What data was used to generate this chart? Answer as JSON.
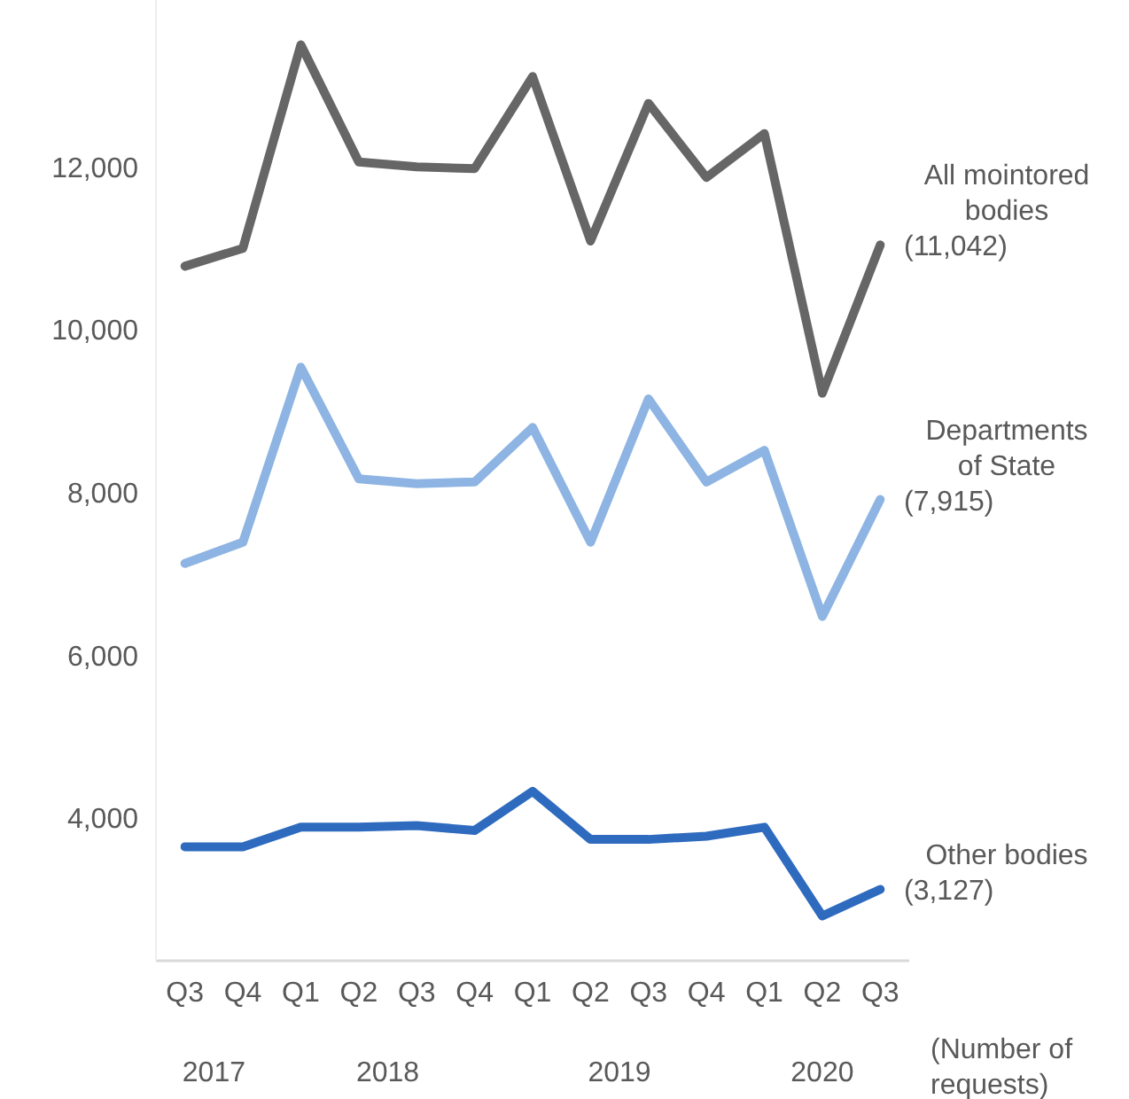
{
  "chart_data": {
    "type": "line",
    "categories": [
      "Q3",
      "Q4",
      "Q1",
      "Q2",
      "Q3",
      "Q4",
      "Q1",
      "Q2",
      "Q3",
      "Q4",
      "Q1",
      "Q2",
      "Q3"
    ],
    "series": [
      {
        "name": "All mointored bodies",
        "color": "#666666",
        "values": [
          10780,
          11000,
          13500,
          12060,
          12000,
          11980,
          13110,
          11090,
          12780,
          11870,
          12410,
          9220,
          11042
        ],
        "value_labels": [
          null,
          null,
          null,
          null,
          null,
          null,
          null,
          null,
          null,
          null,
          null,
          null,
          "(11,042)"
        ]
      },
      {
        "name": "Departments of State",
        "color": "#8db4e2",
        "values": [
          7130,
          7390,
          9540,
          8170,
          8110,
          8130,
          8800,
          7390,
          9150,
          8130,
          8520,
          6480,
          7915
        ],
        "value_labels": [
          null,
          null,
          null,
          null,
          null,
          null,
          null,
          null,
          null,
          null,
          null,
          null,
          "(7,915)"
        ]
      },
      {
        "name": "Other bodies",
        "color": "#2e6bbf",
        "values": [
          3650,
          3650,
          3890,
          3890,
          3910,
          3850,
          4330,
          3740,
          3740,
          3780,
          3890,
          2800,
          3127
        ],
        "value_labels": [
          null,
          null,
          null,
          null,
          null,
          null,
          null,
          null,
          null,
          null,
          null,
          null,
          "(3,127)"
        ]
      }
    ],
    "ylim": [
      2250,
      14050
    ],
    "yticks": [
      {
        "value": 4000,
        "label": "4,000"
      },
      {
        "value": 6000,
        "label": "6,000"
      },
      {
        "value": 8000,
        "label": "8,000"
      },
      {
        "value": 10000,
        "label": "10,000"
      },
      {
        "value": 12000,
        "label": "12,000"
      }
    ],
    "grid": false,
    "legend": "right",
    "marker": "none",
    "line_style": "solid",
    "annotations": [
      "2017",
      "2018",
      "2019",
      "2020",
      "(Number of requests)"
    ]
  }
}
